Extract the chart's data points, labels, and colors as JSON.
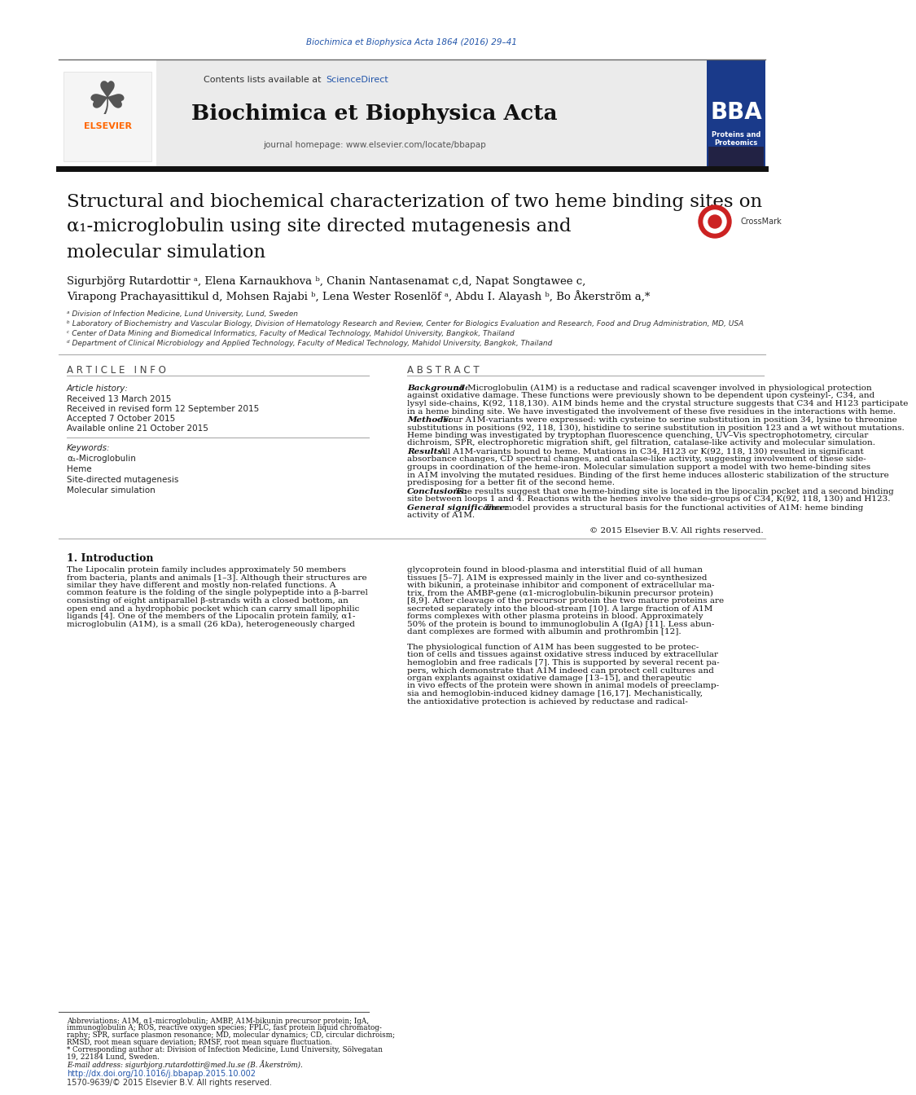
{
  "page_bg": "#ffffff",
  "top_journal_ref": "Biochimica et Biophysica Acta 1864 (2016) 29–41",
  "top_journal_ref_color": "#2255aa",
  "header_sciencedirect_color": "#2255aa",
  "journal_name": "Biochimica et Biophysica Acta",
  "journal_homepage": "journal homepage: www.elsevier.com/locate/bbapap",
  "elsevier_color": "#ff6600",
  "article_title_line1": "Structural and biochemical characterization of two heme binding sites on",
  "article_title_line2": "α₁-microglobulin using site directed mutagenesis and",
  "article_title_line3": "molecular simulation",
  "affil_a": "ᵃ Division of Infection Medicine, Lund University, Lund, Sweden",
  "affil_b": "ᵇ Laboratory of Biochemistry and Vascular Biology, Division of Hematology Research and Review, Center for Biologics Evaluation and Research, Food and Drug Administration, MD, USA",
  "affil_c": "ᶜ Center of Data Mining and Biomedical Informatics, Faculty of Medical Technology, Mahidol University, Bangkok, Thailand",
  "affil_d": "ᵈ Department of Clinical Microbiology and Applied Technology, Faculty of Medical Technology, Mahidol University, Bangkok, Thailand",
  "article_info_header": "A R T I C L E   I N F O",
  "article_history_label": "Article history:",
  "received": "Received 13 March 2015",
  "revised": "Received in revised form 12 September 2015",
  "accepted": "Accepted 7 October 2015",
  "online": "Available online 21 October 2015",
  "keywords_label": "Keywords:",
  "kw1": "α₁-Microglobulin",
  "kw2": "Heme",
  "kw3": "Site-directed mutagenesis",
  "kw4": "Molecular simulation",
  "abstract_header": "A B S T R A C T",
  "copyright": "© 2015 Elsevier B.V. All rights reserved.",
  "intro_header": "1. Introduction",
  "doi": "http://dx.doi.org/10.1016/j.bbapap.2015.10.002",
  "issn": "1570-9639/© 2015 Elsevier B.V. All rights reserved.",
  "doi_color": "#2255aa",
  "bg_label": "Background:",
  "bg_text_line1": "α1-Microglobulin (A1M) is a reductase and radical scavenger involved in physiological protection",
  "bg_text_line2": "against oxidative damage. These functions were previously shown to be dependent upon cysteinyl-, C34, and",
  "bg_text_line3": "lysyl side-chains, K(92, 118,130). A1M binds heme and the crystal structure suggests that C34 and H123 participate",
  "bg_text_line4": "in a heme binding site. We have investigated the involvement of these five residues in the interactions with heme.",
  "meth_label": "Methods:",
  "meth_text_line1": "Four A1M-variants were expressed: with cysteine to serine substitution in position 34, lysine to threonine",
  "meth_text_line2": "substitutions in positions (92, 118, 130), histidine to serine substitution in position 123 and a wt without mutations.",
  "meth_text_line3": "Heme binding was investigated by tryptophan fluorescence quenching, UV–Vis spectrophotometry, circular",
  "meth_text_line4": "dichroism, SPR, electrophoretic migration shift, gel filtration, catalase-like activity and molecular simulation.",
  "res_label": "Results:",
  "res_text_line1": "All A1M-variants bound to heme. Mutations in C34, H123 or K(92, 118, 130) resulted in significant",
  "res_text_line2": "absorbance changes, CD spectral changes, and catalase-like activity, suggesting involvement of these side-",
  "res_text_line3": "groups in coordination of the heme-iron. Molecular simulation support a model with two heme-binding sites",
  "res_text_line4": "in A1M involving the mutated residues. Binding of the first heme induces allosteric stabilization of the structure",
  "res_text_line5": "predisposing for a better fit of the second heme.",
  "conc_label": "Conclusions:",
  "conc_text_line1": "The results suggest that one heme-binding site is located in the lipocalin pocket and a second binding",
  "conc_text_line2": "site between loops 1 and 4. Reactions with the hemes involve the side-groups of C34, K(92, 118, 130) and H123.",
  "gen_label": "General significance:",
  "gen_text_line1": "The model provides a structural basis for the functional activities of A1M: heme binding",
  "gen_text_line2": "activity of A1M.",
  "intro_col1": [
    "The Lipocalin protein family includes approximately 50 members",
    "from bacteria, plants and animals [1–3]. Although their structures are",
    "similar they have different and mostly non-related functions. A",
    "common feature is the folding of the single polypeptide into a β-barrel",
    "consisting of eight antiparallel β-strands with a closed bottom, an",
    "open end and a hydrophobic pocket which can carry small lipophilic",
    "ligands [4]. One of the members of the Lipocalin protein family, α1-",
    "microglobulin (A1M), is a small (26 kDa), heterogeneously charged"
  ],
  "intro_col2": [
    "glycoprotein found in blood-plasma and interstitial fluid of all human",
    "tissues [5–7]. A1M is expressed mainly in the liver and co-synthesized",
    "with bikunin, a proteinase inhibitor and component of extracellular ma-",
    "trix, from the AMBP-gene (α1-microglobulin-bikunin precursor protein)",
    "[8,9]. After cleavage of the precursor protein the two mature proteins are",
    "secreted separately into the blood-stream [10]. A large fraction of A1M",
    "forms complexes with other plasma proteins in blood. Approximately",
    "50% of the protein is bound to immunoglobulin A (IgA) [11]. Less abun-",
    "dant complexes are formed with albumin and prothrombin [12].",
    "",
    "The physiological function of A1M has been suggested to be protec-",
    "tion of cells and tissues against oxidative stress induced by extracellular",
    "hemoglobin and free radicals [7]. This is supported by several recent pa-",
    "pers, which demonstrate that A1M indeed can protect cell cultures and",
    "organ explants against oxidative damage [13–15], and therapeutic",
    "in vivo effects of the protein were shown in animal models of preeclamp-",
    "sia and hemoglobin-induced kidney damage [16,17]. Mechanistically,",
    "the antioxidative protection is achieved by reductase and radical-"
  ],
  "fn_abbrev_lines": [
    "Abbreviations: A1M, α1-microglobulin; AMBP, A1M-bikunin precursor protein; IgA,",
    "immunoglobulin A; ROS, reactive oxygen species; FPLC, fast protein liquid chromatog-",
    "raphy; SPR, surface plasmon resonance; MD, molecular dynamics; CD, circular dichroism;",
    "RMSD, root mean square deviation; RMSF, root mean square fluctuation."
  ],
  "fn_corr_line1": "* Corresponding author at: Division of Infection Medicine, Lund University, Sölvegatan",
  "fn_corr_line2": "19, 22184 Lund, Sweden.",
  "fn_email": "E-mail address: sigurbjorg.rutardottir@med.lu.se (B. Åkerström)."
}
